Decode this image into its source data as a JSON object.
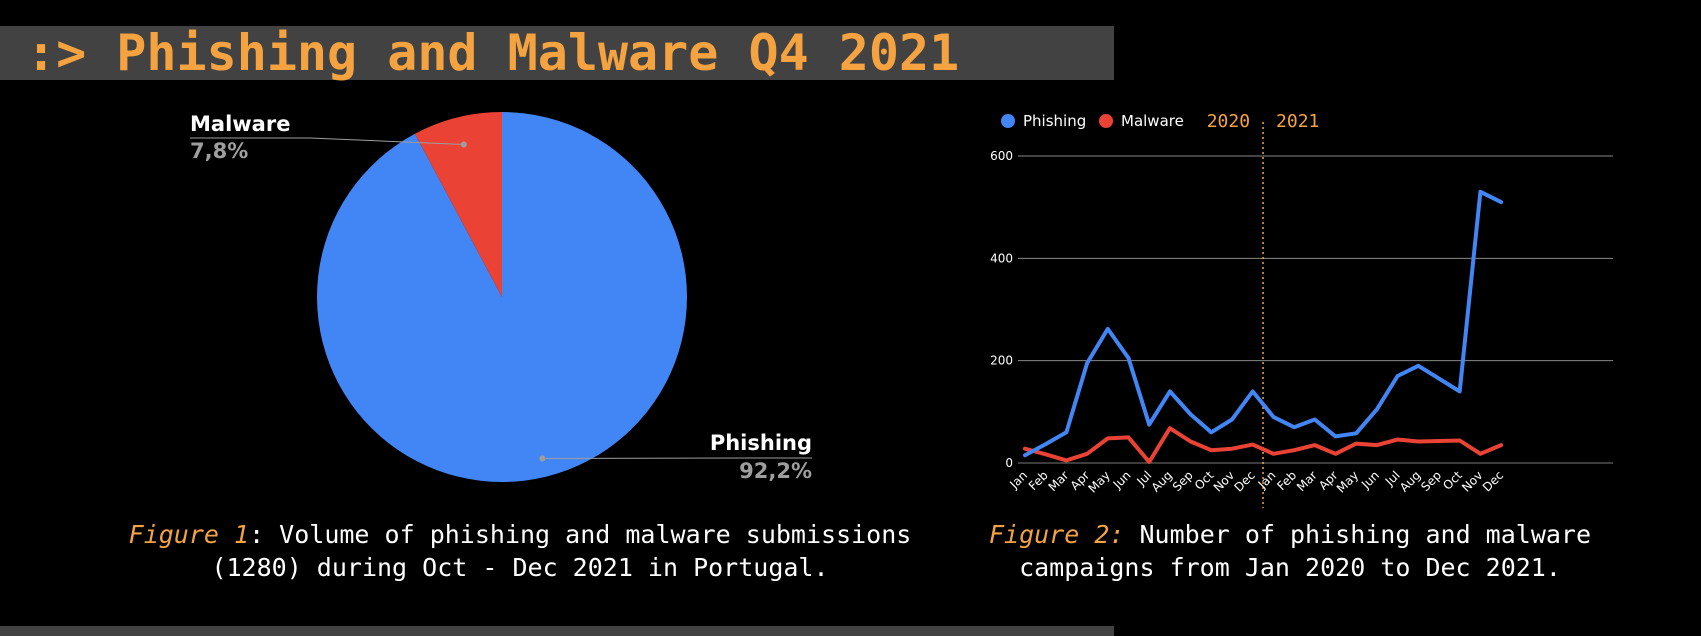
{
  "header": {
    "title": ":> Phishing and Malware Q4 2021"
  },
  "figure1": {
    "caption_prefix": "Figure 1",
    "caption_line1": ": Volume of phishing and malware submissions",
    "caption_line2": "(1280) during Oct - Dec 2021 in Portugal."
  },
  "figure2": {
    "caption_prefix": "Figure 2:",
    "caption_line1": " Number of phishing and malware",
    "caption_line2": "campaigns from Jan 2020 to Dec 2021."
  },
  "colors": {
    "phishing": "#4285f4",
    "malware": "#ea4335",
    "accent": "#f4a340"
  },
  "chart_data": [
    {
      "type": "pie",
      "slices": [
        {
          "label": "Phishing",
          "value_label": "92,2%",
          "value": 92.2
        },
        {
          "label": "Malware",
          "value_label": "7,8%",
          "value": 7.8
        }
      ]
    },
    {
      "type": "line",
      "legend_position": "top-left",
      "grid": true,
      "ylim": [
        0,
        600
      ],
      "y_ticks": [
        "600",
        "400",
        "200",
        "0"
      ],
      "year_labels": [
        "2020",
        "2021"
      ],
      "categories": [
        "Jan",
        "Feb",
        "Mar",
        "Apr",
        "May",
        "Jun",
        "Jul",
        "Aug",
        "Sep",
        "Oct",
        "Nov",
        "Dec",
        "Jan",
        "Feb",
        "Mar",
        "Apr",
        "May",
        "Jun",
        "Jul",
        "Aug",
        "Sep",
        "Oct",
        "Nov",
        "Dec"
      ],
      "series": [
        {
          "name": "Phishing",
          "values": [
            15,
            37,
            60,
            195,
            262,
            205,
            75,
            140,
            95,
            60,
            85,
            140,
            90,
            70,
            85,
            52,
            58,
            105,
            170,
            190,
            165,
            140,
            530,
            510
          ]
        },
        {
          "name": "Malware",
          "values": [
            28,
            17,
            5,
            18,
            48,
            50,
            2,
            68,
            42,
            25,
            28,
            36,
            18,
            25,
            35,
            18,
            38,
            35,
            46,
            42,
            43,
            44,
            18,
            35
          ]
        }
      ]
    }
  ]
}
